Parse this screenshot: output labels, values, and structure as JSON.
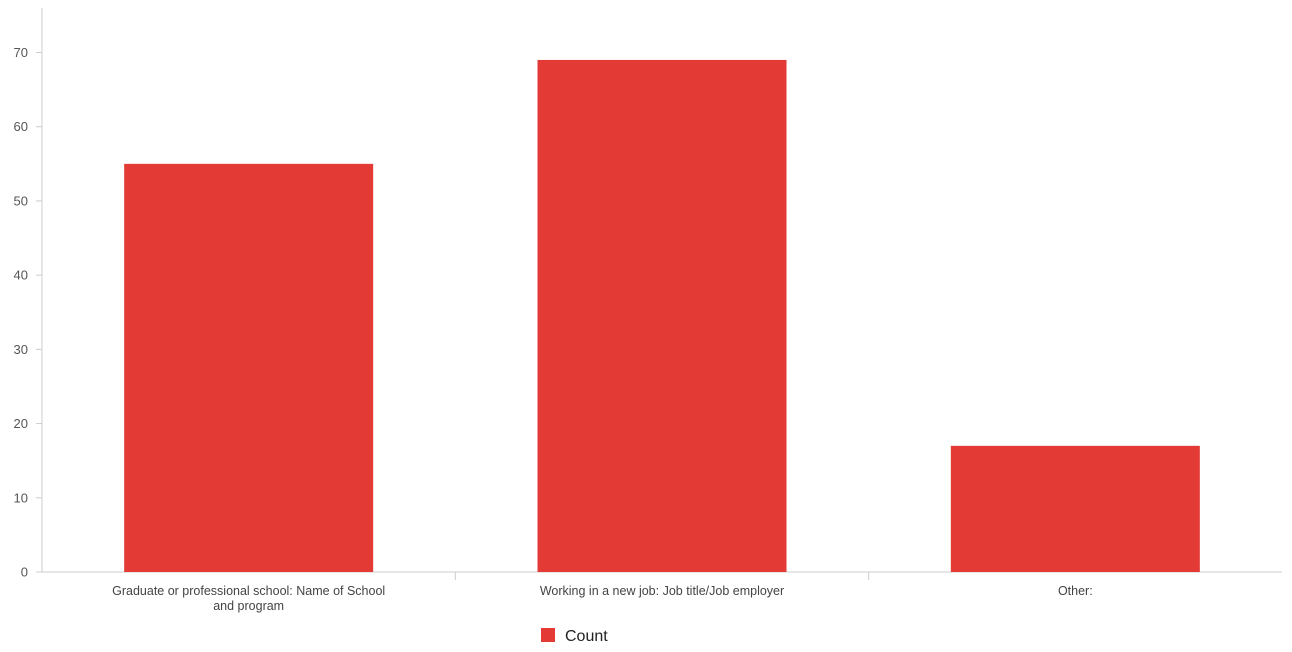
{
  "chart_data": {
    "type": "bar",
    "categories": [
      "Graduate or professional school: Name of School and program",
      "Working in a new job: Job title/Job employer",
      "Other:"
    ],
    "category_lines": [
      [
        "Graduate or professional school: Name of School",
        "and program"
      ],
      [
        "Working in a new job: Job title/Job employer"
      ],
      [
        "Other:"
      ]
    ],
    "series": [
      {
        "name": "Count",
        "values": [
          55,
          69,
          17
        ],
        "color": "#e33a36"
      }
    ],
    "yticks": [
      0,
      10,
      20,
      30,
      40,
      50,
      60,
      70
    ],
    "ylim": [
      0,
      76
    ],
    "title": "",
    "xlabel": "",
    "ylabel": "",
    "grid": false,
    "legend_position": "bottom-center"
  }
}
